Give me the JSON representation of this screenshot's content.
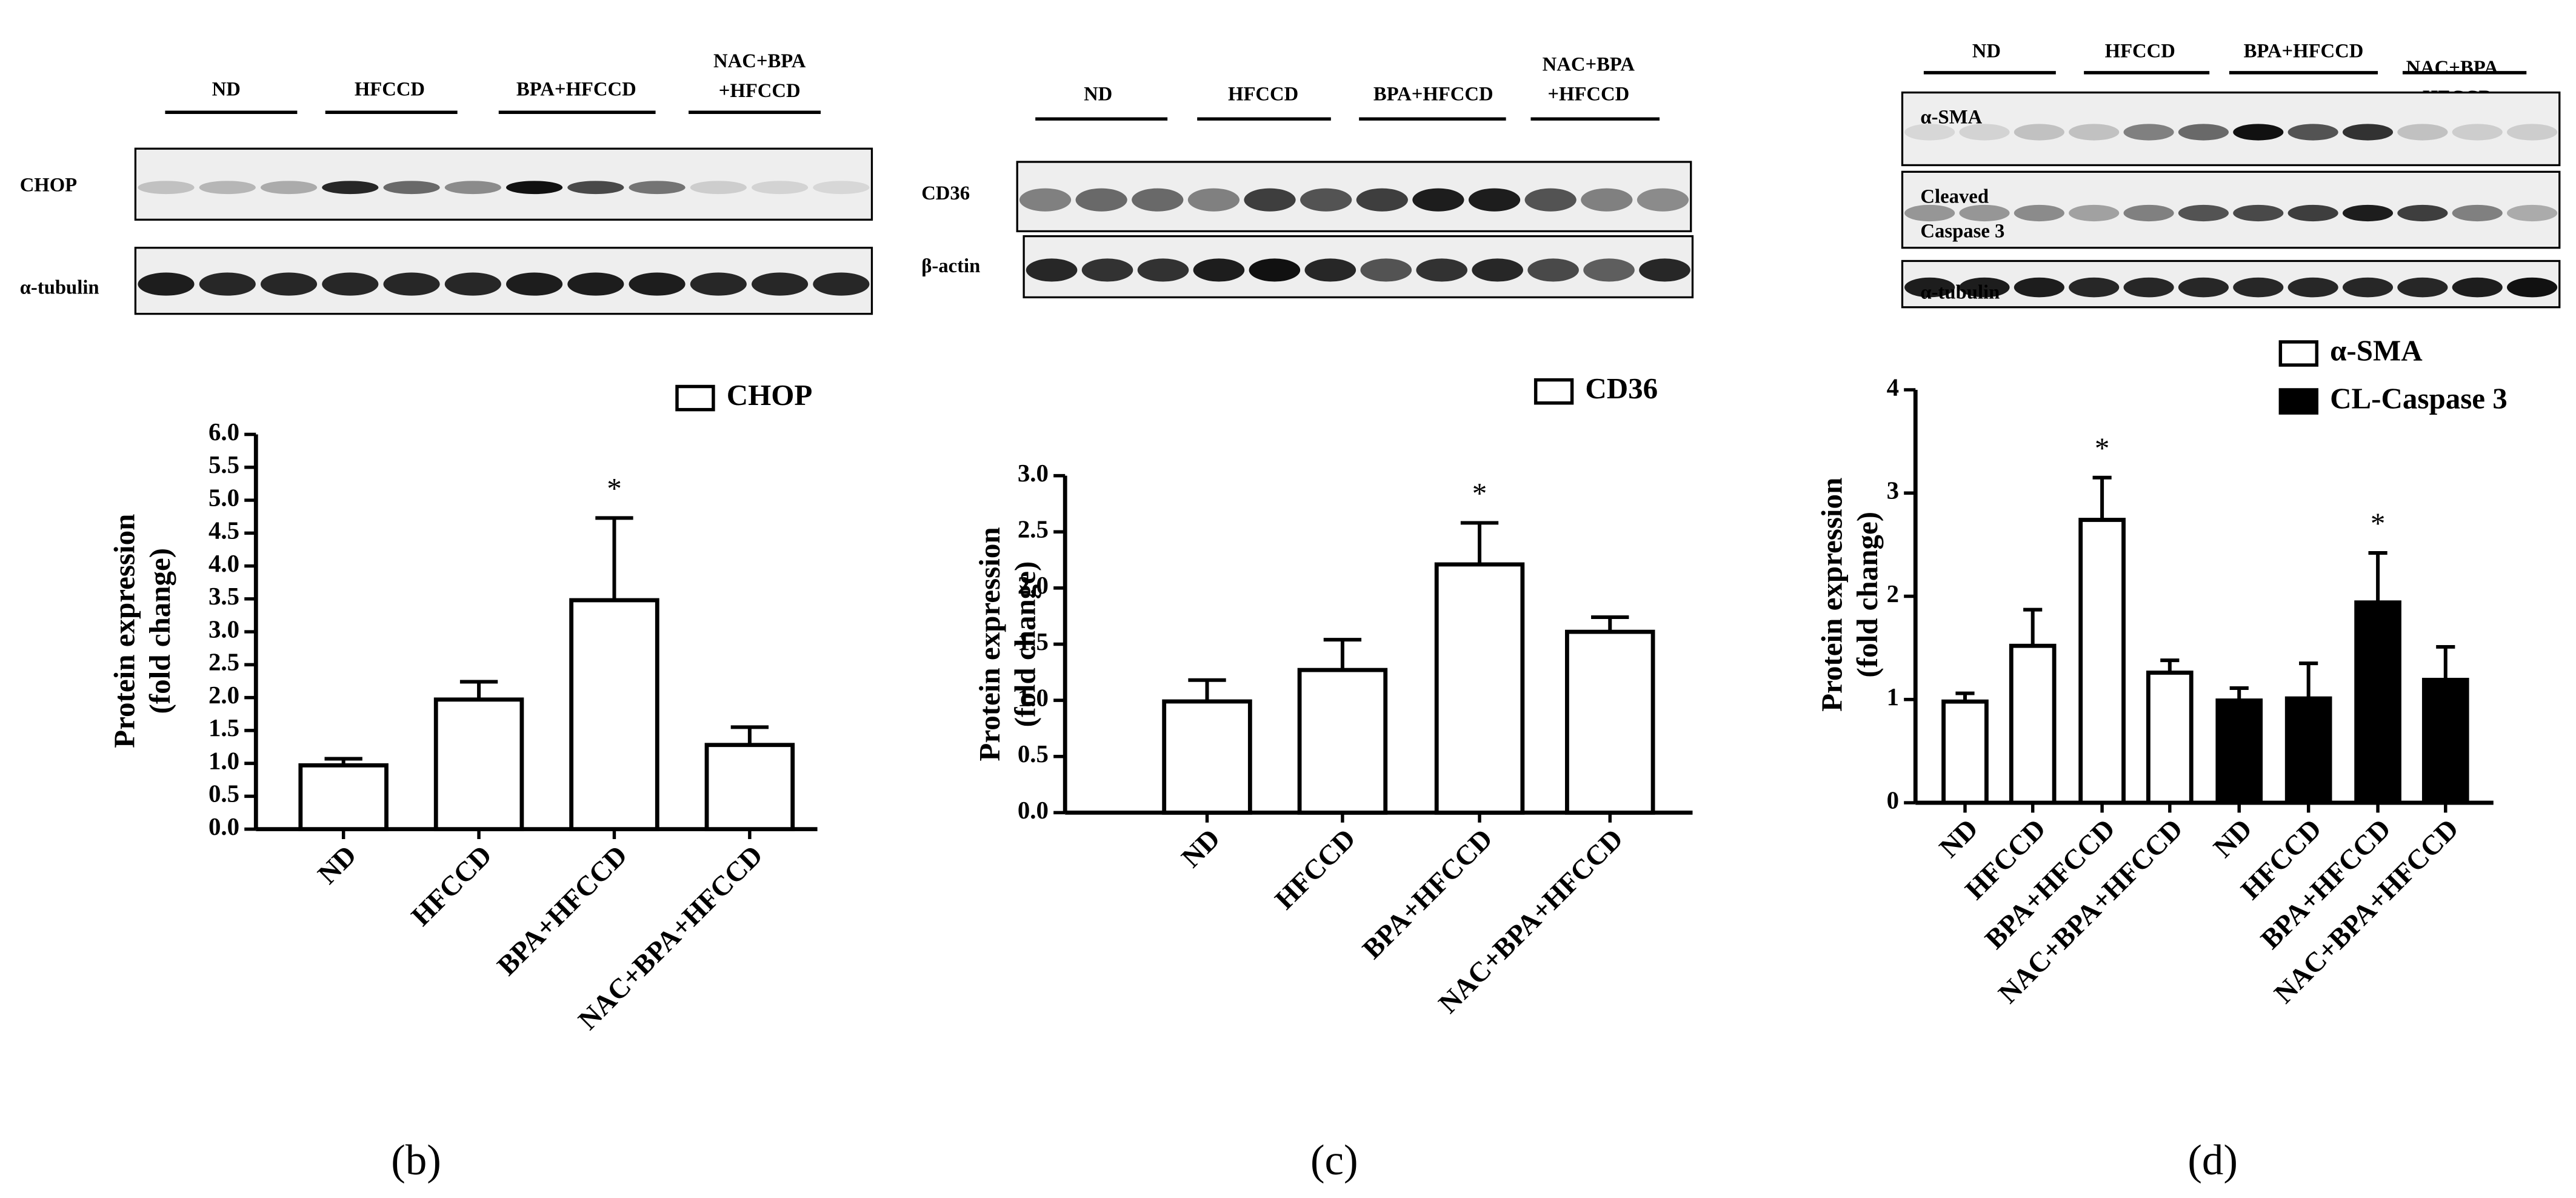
{
  "chart_data": [
    {
      "type": "bar",
      "panel": "(b)",
      "blot": {
        "groups": [
          [
            "ND"
          ],
          [
            "HFCCD"
          ],
          [
            "BPA+HFCCD"
          ],
          [
            "NAC+BPA",
            "+HFCCD"
          ]
        ],
        "rows": [
          [
            "CHOP"
          ],
          [
            "α-tubulin"
          ]
        ]
      },
      "ylabel": [
        "Protein expression",
        "(fold change)"
      ],
      "categories": [
        "ND",
        "HFCCD",
        "BPA+HFCCD",
        "NAC+BPA+HFCCD"
      ],
      "series": [
        {
          "name": "CHOP",
          "color": "#ffffff",
          "edgecolor": "#000000",
          "values": [
            0.97,
            1.97,
            3.48,
            1.28
          ],
          "errors": [
            0.1,
            0.27,
            1.25,
            0.27
          ]
        }
      ],
      "annotations": [
        {
          "text": "*",
          "series": 0,
          "index": 2
        }
      ],
      "ylim": [
        0,
        6
      ],
      "yticks": [
        {
          "value": 0,
          "label": "0.0"
        },
        0.5,
        {
          "value": 1,
          "label": "1.0"
        },
        1.5,
        {
          "value": 2,
          "label": "2.0"
        },
        2.5,
        {
          "value": 3,
          "label": "3.0"
        },
        3.5,
        {
          "value": 4,
          "label": "4.0"
        },
        4.5,
        {
          "value": 5,
          "label": "5.0"
        },
        5.5,
        {
          "value": 6,
          "label": "6.0"
        }
      ]
    },
    {
      "type": "bar",
      "panel": "(c)",
      "blot": {
        "groups": [
          [
            "ND"
          ],
          [
            "HFCCD"
          ],
          [
            "BPA+HFCCD"
          ],
          [
            "NAC+BPA",
            "+HFCCD"
          ]
        ],
        "rows": [
          [
            "CD36"
          ],
          [
            "β-actin"
          ]
        ]
      },
      "ylabel": [
        "Protein expression",
        "(fold change)"
      ],
      "categories": [
        "ND",
        "HFCCD",
        "BPA+HFCCD",
        "NAC+BPA+HFCCD"
      ],
      "series": [
        {
          "name": "CD36",
          "color": "#ffffff",
          "edgecolor": "#000000",
          "values": [
            0.99,
            1.27,
            2.21,
            1.61
          ],
          "errors": [
            0.19,
            0.27,
            0.37,
            0.13
          ]
        }
      ],
      "annotations": [
        {
          "text": "*",
          "series": 0,
          "index": 2
        }
      ],
      "ylim": [
        0,
        3
      ],
      "yticks": [
        {
          "value": 0,
          "label": "0.0"
        },
        0.5,
        {
          "value": 1,
          "label": "1.0"
        },
        1.5,
        {
          "value": 2,
          "label": "2.0"
        },
        2.5,
        {
          "value": 3,
          "label": "3.0"
        }
      ]
    },
    {
      "type": "bar",
      "panel": "(d)",
      "blot": {
        "groups": [
          [
            "ND"
          ],
          [
            "HFCCD"
          ],
          [
            "BPA+HFCCD"
          ],
          [
            "NAC+BPA",
            "+HFCCD"
          ]
        ],
        "rows": [
          [
            "α-SMA"
          ],
          [
            "Cleaved",
            "Caspase 3"
          ],
          [
            "α-tubulin"
          ]
        ]
      },
      "ylabel": [
        "Protein expression",
        "(fold change)"
      ],
      "categories": [
        "ND",
        "HFCCD",
        "BPA+HFCCD",
        "NAC+BPA+HFCCD"
      ],
      "series": [
        {
          "name": "α-SMA",
          "color": "#ffffff",
          "edgecolor": "#000000",
          "values": [
            0.98,
            1.52,
            2.74,
            1.26
          ],
          "errors": [
            0.08,
            0.35,
            0.41,
            0.12
          ]
        },
        {
          "name": "CL-Caspase 3",
          "color": "#000000",
          "edgecolor": "#000000",
          "values": [
            0.99,
            1.01,
            1.94,
            1.19
          ],
          "errors": [
            0.12,
            0.34,
            0.48,
            0.32
          ]
        }
      ],
      "annotations": [
        {
          "text": "*",
          "series": 0,
          "index": 2
        },
        {
          "text": "*",
          "series": 1,
          "index": 2
        }
      ],
      "ylim": [
        0,
        4
      ],
      "yticks": [
        0,
        1,
        2,
        3,
        4
      ]
    }
  ]
}
